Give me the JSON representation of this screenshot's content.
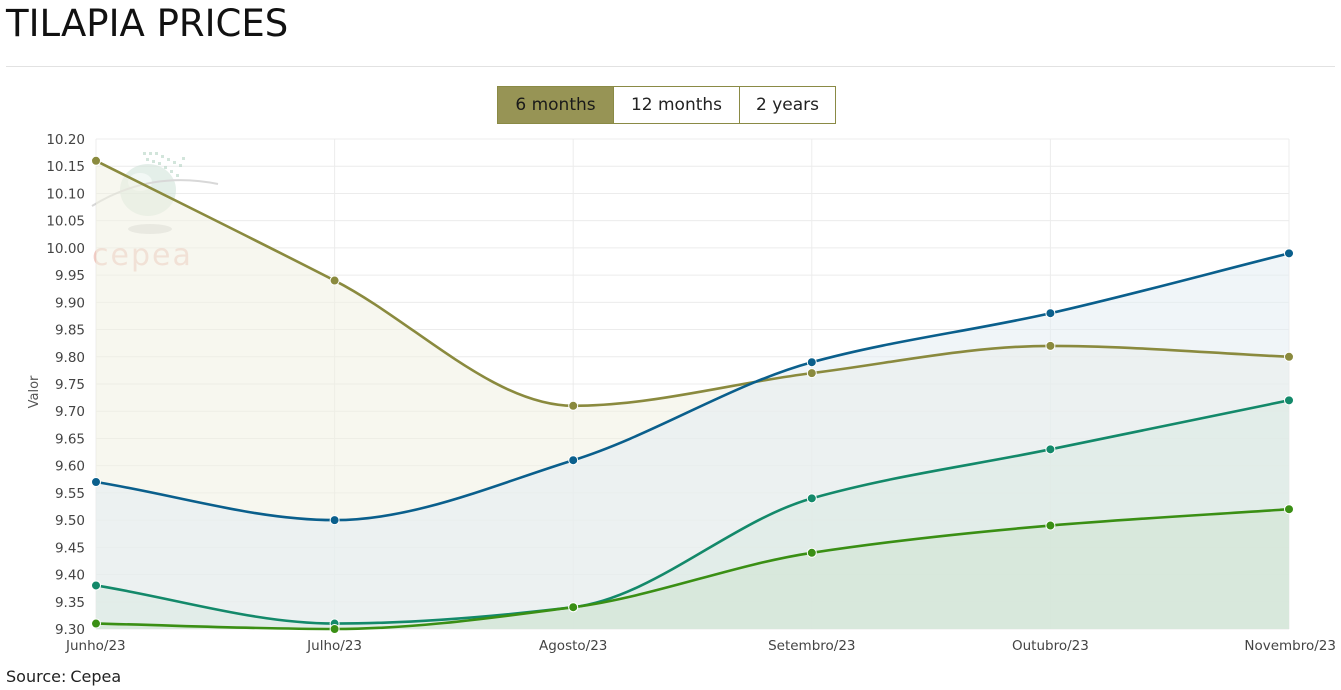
{
  "page": {
    "title": "TILAPIA PRICES"
  },
  "range_buttons": [
    {
      "label": "6 months",
      "active": true
    },
    {
      "label": "12 months",
      "active": false
    },
    {
      "label": "2 years",
      "active": false
    }
  ],
  "watermark": {
    "text": "cepea"
  },
  "source": {
    "prefix": "Source:",
    "name": "Cepea"
  },
  "colors": {
    "olive": "#8a8a3e",
    "blue": "#0a5f8c",
    "teal": "#13896a",
    "green": "#3a8f14"
  },
  "chart_data": {
    "type": "area",
    "title": "",
    "xlabel": "",
    "ylabel": "Valor",
    "categories": [
      "Junho/23",
      "Julho/23",
      "Agosto/23",
      "Setembro/23",
      "Outubro/23",
      "Novembro/23"
    ],
    "ylim": [
      9.3,
      10.2
    ],
    "yticks": [
      "9.30",
      "9.35",
      "9.40",
      "9.45",
      "9.50",
      "9.55",
      "9.60",
      "9.65",
      "9.70",
      "9.75",
      "9.80",
      "9.85",
      "9.90",
      "9.95",
      "10.00",
      "10.05",
      "10.10",
      "10.15",
      "10.20"
    ],
    "grid": true,
    "legend": "none",
    "series": [
      {
        "color": "#8a8a3e",
        "fill": "#f1f1e2",
        "values": [
          10.16,
          9.94,
          9.71,
          9.77,
          9.82,
          9.8
        ]
      },
      {
        "color": "#0a5f8c",
        "fill": "#e3edf2",
        "values": [
          9.57,
          9.5,
          9.61,
          9.79,
          9.88,
          9.99
        ]
      },
      {
        "color": "#13896a",
        "fill": "#dbe9e2",
        "values": [
          9.38,
          9.31,
          9.34,
          9.54,
          9.63,
          9.72
        ]
      },
      {
        "color": "#3a8f14",
        "fill": "#cfe3d2",
        "values": [
          9.31,
          9.3,
          9.34,
          9.44,
          9.49,
          9.52
        ]
      }
    ]
  }
}
